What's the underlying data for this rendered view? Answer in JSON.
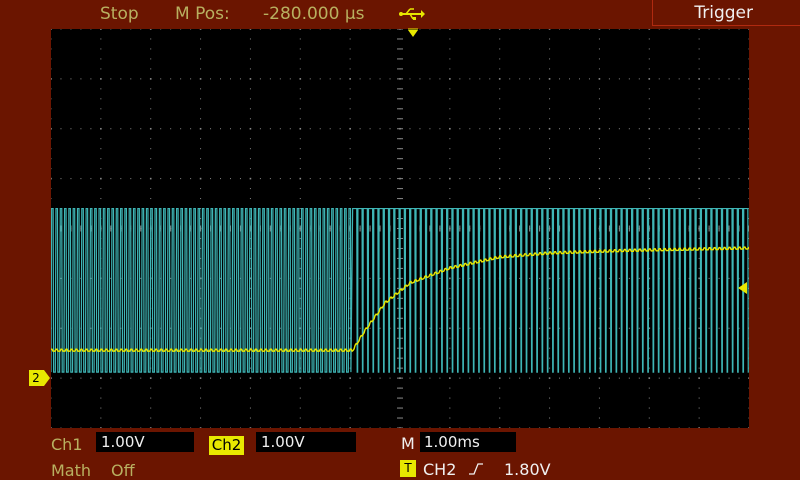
{
  "header": {
    "status": "Stop",
    "mpos_label": "M Pos:",
    "mpos_value": "-280.000 µs",
    "usb_icon": "usb-icon",
    "trigger_title": "Trigger"
  },
  "footer": {
    "ch1_label": "Ch1",
    "ch1_scale": "1.00V",
    "ch2_label": "Ch2",
    "ch2_scale": "1.00V",
    "time_label": "M",
    "time_scale": "1.00ms",
    "math_label": "Math",
    "math_state": "Off",
    "trig_badge": "T",
    "trig_source": "CH2",
    "trig_edge_icon": "rising-edge-icon",
    "trig_level": "1.80V"
  },
  "markers": {
    "ch2_marker": "2"
  },
  "colors": {
    "background": "#6b1500",
    "screen": "#000000",
    "grid": "#8a8a8a",
    "ch2_trace": "#e8e800",
    "cyan_trace": "#3fb6b6",
    "label_olive": "#b8b060"
  },
  "chart_data": {
    "type": "line",
    "grid": {
      "divisions_x": 14,
      "divisions_y": 8
    },
    "x_units": "divisions",
    "y_units": "divisions",
    "series": [
      {
        "color": "#e8e800",
        "points": [
          [
            0,
            1.55
          ],
          [
            6.05,
            1.55
          ],
          [
            6.3,
            1.95
          ],
          [
            6.7,
            2.5
          ],
          [
            7.2,
            2.9
          ],
          [
            8,
            3.2
          ],
          [
            9,
            3.42
          ],
          [
            10,
            3.5
          ],
          [
            11.5,
            3.55
          ],
          [
            14,
            3.6
          ]
        ]
      },
      {
        "color": "#3fb6b6",
        "high": 4.4,
        "low": 1.12,
        "pulses_before": 70,
        "pulses_after": 75,
        "step_at": 6.05,
        "duty_after": 0.78
      }
    ]
  }
}
